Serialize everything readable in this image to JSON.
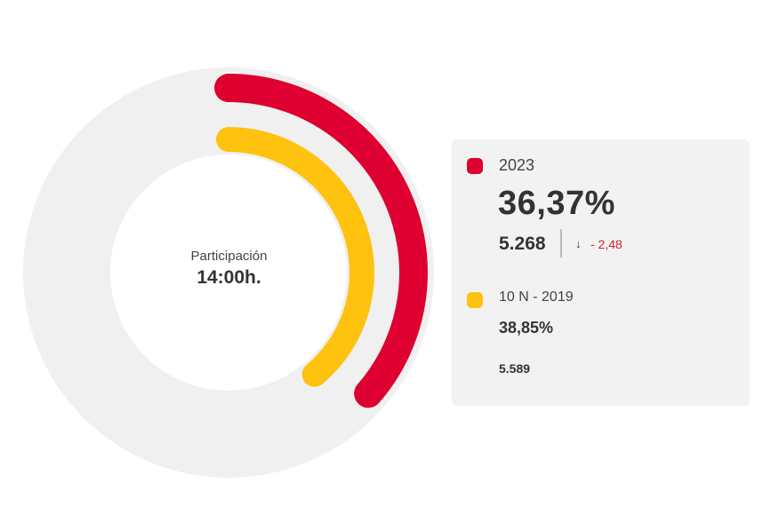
{
  "colors": {
    "track": "#f0f0f0",
    "series_2023": "#dd0030",
    "series_2019": "#fec20f",
    "negative_delta": "#d8202a"
  },
  "center": {
    "label": "Participación",
    "time": "14:00h."
  },
  "legend": {
    "current": {
      "year": "2023",
      "percent": "36,37%",
      "value": "5.268",
      "delta_arrow": "↓",
      "delta": "- 2,48"
    },
    "previous": {
      "year": "10 N - 2019",
      "percent": "38,85%",
      "value": "5.589"
    }
  },
  "chart_data": {
    "type": "pie",
    "series": [
      {
        "name": "2023",
        "value": 36.37,
        "count": 5268
      },
      {
        "name": "10 N - 2019",
        "value": 38.85,
        "count": 5589
      }
    ],
    "max": 100,
    "unit": "%"
  }
}
